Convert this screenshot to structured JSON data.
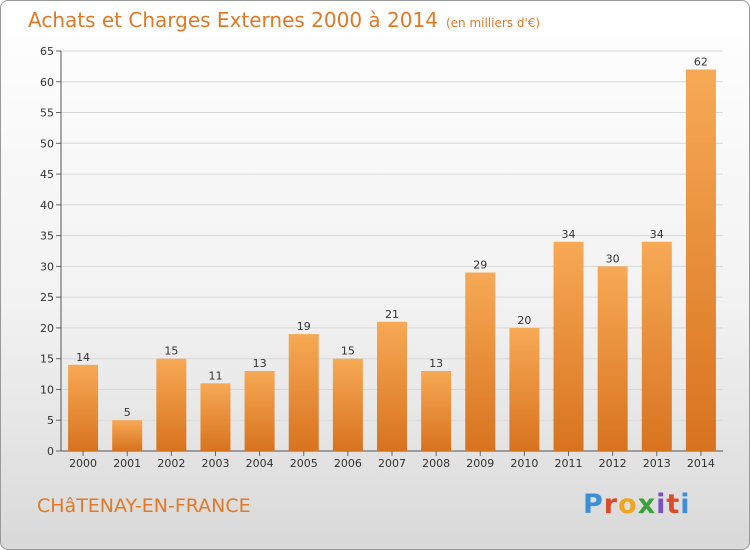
{
  "header": {
    "title": "Achats et Charges Externes 2000 à 2014",
    "unit": "(en milliers d'€)"
  },
  "footer": {
    "city": "CHâTENAY-EN-FRANCE",
    "logo": "Proxiti"
  },
  "colors": {
    "accent": "#e07a27",
    "bar_light": "#f7a955",
    "bar_dark": "#d8731f",
    "logo_letters": [
      "#3b8fd6",
      "#e04a2a",
      "#f0a51e",
      "#3aa23a",
      "#7c4fc4",
      "#e04a2a",
      "#3b8fd6"
    ]
  },
  "chart_data": {
    "type": "bar",
    "title": "Achats et Charges Externes 2000 à 2014",
    "subtitle": "(en milliers d'€)",
    "xlabel": "",
    "ylabel": "",
    "categories": [
      "2000",
      "2001",
      "2002",
      "2003",
      "2004",
      "2005",
      "2006",
      "2007",
      "2008",
      "2009",
      "2010",
      "2011",
      "2012",
      "2013",
      "2014"
    ],
    "values": [
      14,
      5,
      15,
      11,
      13,
      19,
      15,
      21,
      13,
      29,
      20,
      34,
      30,
      34,
      62
    ],
    "ylim": [
      0,
      65
    ],
    "yticks": [
      0,
      5,
      10,
      15,
      20,
      25,
      30,
      35,
      40,
      45,
      50,
      55,
      60,
      65
    ],
    "grid": true,
    "legend": "none"
  }
}
